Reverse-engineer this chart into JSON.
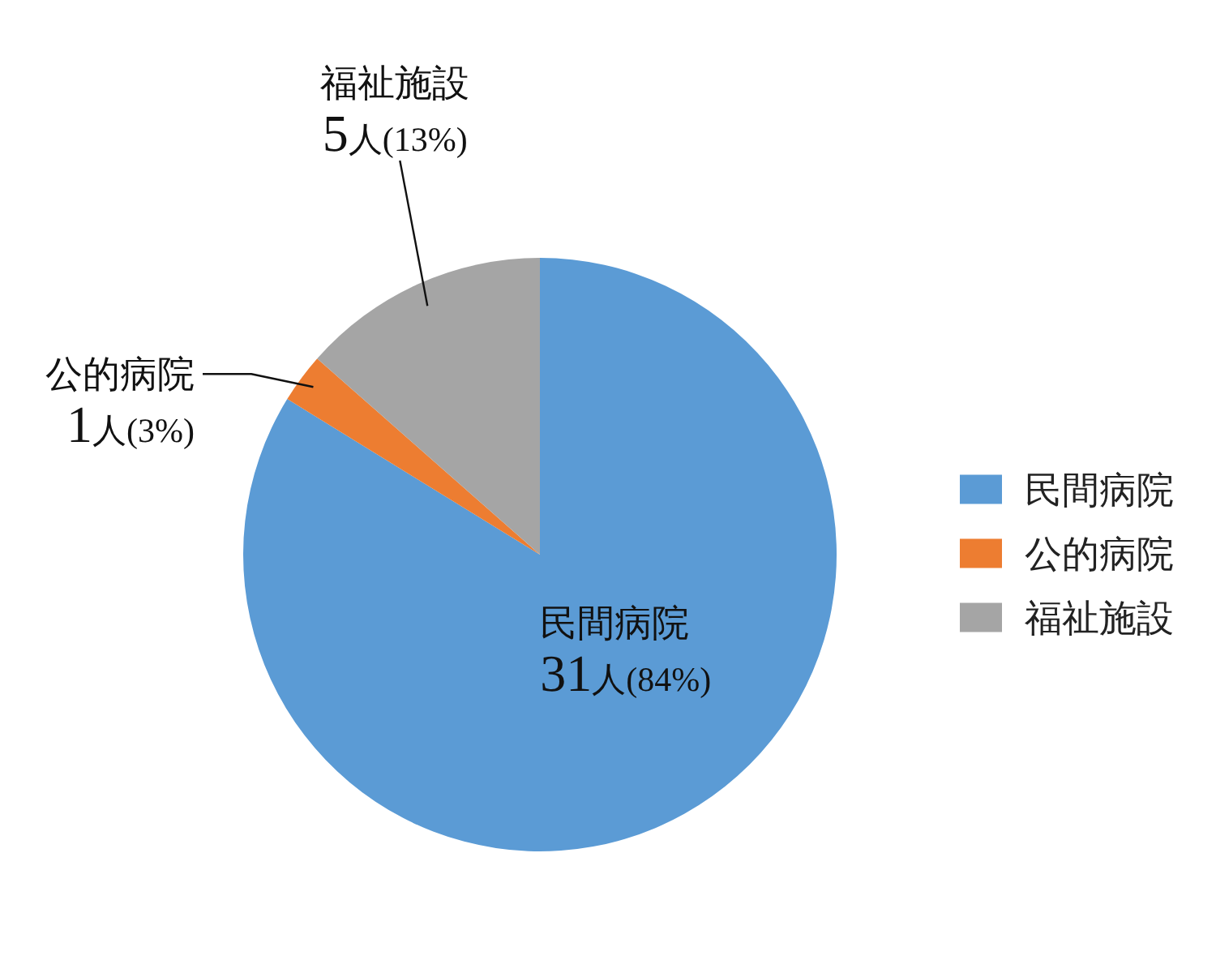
{
  "chart_data": {
    "type": "pie",
    "categories": [
      "民間病院",
      "公的病院",
      "福祉施設"
    ],
    "values": [
      31,
      1,
      5
    ],
    "colors": [
      "#5b9bd5",
      "#ed7d31",
      "#a5a5a5"
    ],
    "value_labels": [
      "31人(84%)",
      "1人(3%)",
      "5人(13%)"
    ],
    "legend": "right"
  }
}
